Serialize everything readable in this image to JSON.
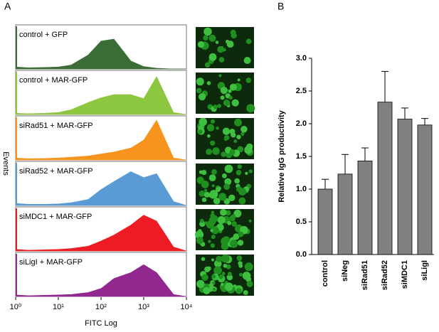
{
  "chart_data": [
    {
      "type": "histogram-stack",
      "panel_label": "A",
      "xlabel": "FITC Log",
      "ylabel": "Events",
      "log_x": true,
      "xlim": [
        1,
        10000
      ],
      "xticks": [
        {
          "value": 1,
          "label": "10⁰"
        },
        {
          "value": 10,
          "label": "10¹"
        },
        {
          "value": 100,
          "label": "10²"
        },
        {
          "value": 1000,
          "label": "10³"
        },
        {
          "value": 10000,
          "label": "10⁴"
        }
      ],
      "x": [
        1,
        2,
        5,
        10,
        20,
        50,
        100,
        200,
        500,
        1000,
        2000,
        5000,
        10000
      ],
      "series": [
        {
          "name": "control + GFP",
          "color": "#3b6e36",
          "values": [
            0.05,
            0.03,
            0.04,
            0.05,
            0.1,
            0.35,
            0.7,
            0.75,
            0.2,
            0.06,
            0.02,
            0,
            0
          ]
        },
        {
          "name": "control + MAR-GFP",
          "color": "#8dc63f",
          "values": [
            0.03,
            0.02,
            0.03,
            0.05,
            0.12,
            0.3,
            0.42,
            0.5,
            0.5,
            0.4,
            0.95,
            0.05,
            0
          ]
        },
        {
          "name": "siRad51 + MAR-GFP",
          "color": "#f7941d",
          "values": [
            0.05,
            0.03,
            0.04,
            0.05,
            0.07,
            0.1,
            0.15,
            0.2,
            0.3,
            0.5,
            1.0,
            0.05,
            0
          ]
        },
        {
          "name": "siRad52 + MAR-GFP",
          "color": "#5b9bd5",
          "values": [
            0.05,
            0.03,
            0.03,
            0.04,
            0.07,
            0.15,
            0.4,
            0.6,
            0.85,
            0.7,
            0.8,
            0.1,
            0
          ]
        },
        {
          "name": "siMDC1 + MAR-GFP",
          "color": "#ed1c24",
          "values": [
            0.04,
            0.02,
            0.03,
            0.04,
            0.06,
            0.12,
            0.25,
            0.4,
            0.65,
            0.9,
            0.75,
            0.1,
            0
          ]
        },
        {
          "name": "siLigI + MAR-GFP",
          "color": "#92278f",
          "values": [
            0.04,
            0.02,
            0.03,
            0.04,
            0.05,
            0.1,
            0.2,
            0.45,
            0.6,
            0.8,
            0.6,
            0.05,
            0
          ]
        }
      ]
    },
    {
      "type": "bar",
      "panel_label": "B",
      "ylabel": "Relative IgG productivity",
      "color": "#808080",
      "categories": [
        "control",
        "siNeg",
        "siRad51",
        "siRad52",
        "siMDC1",
        "siLigI"
      ],
      "values": [
        1.0,
        1.23,
        1.43,
        2.33,
        2.07,
        1.98
      ],
      "errors": [
        0.15,
        0.3,
        0.2,
        0.47,
        0.17,
        0.1
      ],
      "ylim": [
        0,
        3
      ],
      "yticks": [
        {
          "value": 0,
          "label": "0.0"
        },
        0.5,
        {
          "value": 1,
          "label": "1.0"
        },
        1.5,
        {
          "value": 2,
          "label": "2.0"
        },
        2.5,
        {
          "value": 3,
          "label": "3.0"
        }
      ]
    }
  ]
}
